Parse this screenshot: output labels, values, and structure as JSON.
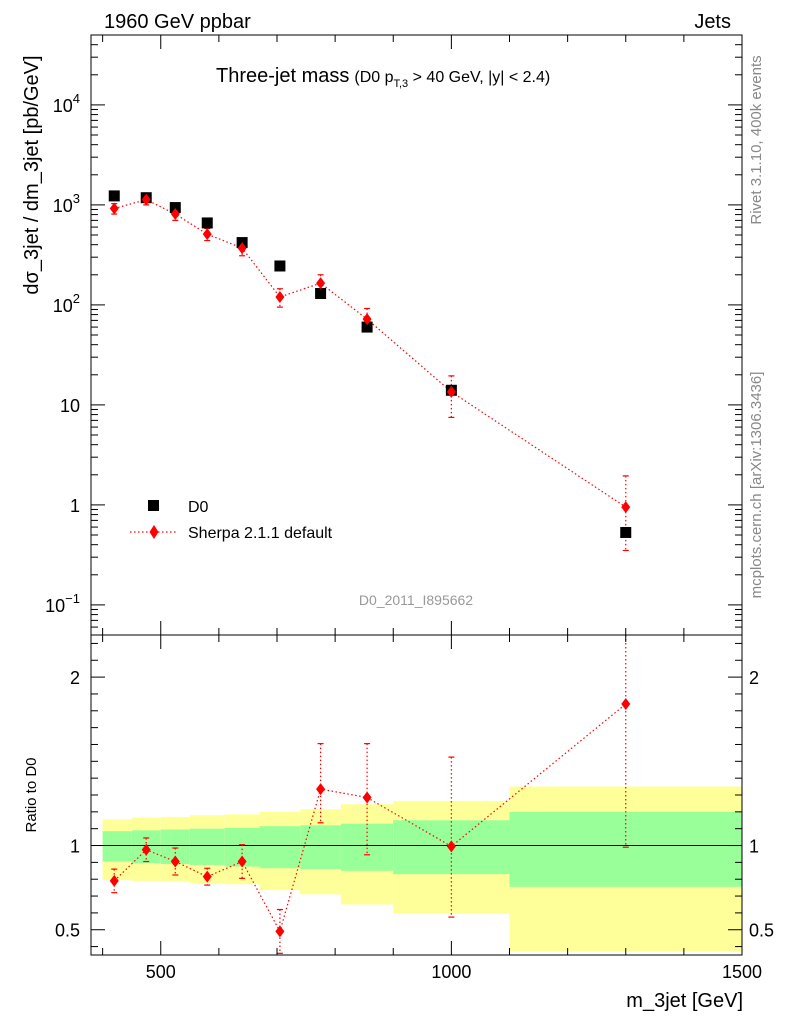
{
  "header": {
    "left": "1960 GeV ppbar",
    "right": "Jets"
  },
  "side_labels": {
    "rivet": "Rivet 3.1.10,  400k events",
    "mcplots": "mcplots.cern.ch [arXiv:1306.3436]"
  },
  "watermark": "D0_2011_I895662",
  "chart_data": [
    {
      "type": "scatter",
      "title": "Three-jet mass",
      "subtitle": "(D0 p_T,3 > 40 GeV, |y| < 2.4)",
      "subtitle_parts": {
        "pre": "(D0 p",
        "sub": "T,3",
        "post": " > 40 GeV, |y| < 2.4)"
      },
      "ylabel": "dσ_3jet / dm_3jet [pb/GeV]",
      "xlim": [
        380,
        1500
      ],
      "ylim": [
        0.05,
        50000
      ],
      "yscale": "log",
      "y_ticks": [
        {
          "value": 0.1,
          "base": "10",
          "exp": "−1"
        },
        {
          "value": 1,
          "text": "1"
        },
        {
          "value": 10,
          "text": "10"
        },
        {
          "value": 100,
          "base": "10",
          "exp": "2"
        },
        {
          "value": 1000,
          "base": "10",
          "exp": "3"
        },
        {
          "value": 10000,
          "base": "10",
          "exp": "4"
        }
      ],
      "legend": {
        "position": "bottom-left"
      },
      "series": [
        {
          "name": "D0",
          "color": "#000000",
          "marker": "square",
          "x": [
            420,
            475,
            525,
            580,
            640,
            705,
            775,
            855,
            1000,
            1300
          ],
          "y": [
            1230,
            1180,
            940,
            660,
            420,
            245,
            130,
            60,
            14,
            0.53
          ]
        },
        {
          "name": "Sherpa 2.1.1 default",
          "color": "#ff0000",
          "marker": "diamond",
          "line": "dotted",
          "x": [
            420,
            475,
            525,
            580,
            640,
            705,
            775,
            855,
            1000,
            1300
          ],
          "y": [
            920,
            1130,
            810,
            510,
            370,
            120,
            165,
            72,
            13.5,
            0.95
          ],
          "y_err_low": [
            110,
            130,
            110,
            70,
            60,
            25,
            30,
            15,
            6,
            0.6
          ],
          "y_err_high": [
            110,
            130,
            110,
            70,
            60,
            25,
            35,
            20,
            6,
            1.0
          ]
        }
      ]
    },
    {
      "type": "scatter",
      "ylabel": "Ratio to D0",
      "xlabel": "m_3jet [GeV]",
      "xlim": [
        380,
        1500
      ],
      "ylim": [
        0.35,
        2.25
      ],
      "x_ticks": [
        500,
        1000,
        1500
      ],
      "x_tick_labels": [
        "500",
        "1000",
        "1500"
      ],
      "y_ticks": [
        0.5,
        1,
        2
      ],
      "y_tick_labels": [
        "0.5",
        "1",
        "2"
      ],
      "reference_line": 1,
      "bands": [
        {
          "x0": 400,
          "x1": 450,
          "green": [
            0.905,
            1.085
          ],
          "yellow": [
            0.795,
            1.155
          ]
        },
        {
          "x0": 450,
          "x1": 500,
          "green": [
            0.895,
            1.09
          ],
          "yellow": [
            0.79,
            1.165
          ]
        },
        {
          "x0": 500,
          "x1": 550,
          "green": [
            0.89,
            1.095
          ],
          "yellow": [
            0.785,
            1.17
          ]
        },
        {
          "x0": 550,
          "x1": 610,
          "green": [
            0.885,
            1.1
          ],
          "yellow": [
            0.775,
            1.18
          ]
        },
        {
          "x0": 610,
          "x1": 670,
          "green": [
            0.875,
            1.105
          ],
          "yellow": [
            0.77,
            1.185
          ]
        },
        {
          "x0": 670,
          "x1": 740,
          "green": [
            0.865,
            1.115
          ],
          "yellow": [
            0.735,
            1.2
          ]
        },
        {
          "x0": 740,
          "x1": 810,
          "green": [
            0.86,
            1.12
          ],
          "yellow": [
            0.71,
            1.215
          ]
        },
        {
          "x0": 810,
          "x1": 900,
          "green": [
            0.85,
            1.13
          ],
          "yellow": [
            0.65,
            1.245
          ]
        },
        {
          "x0": 900,
          "x1": 1100,
          "green": [
            0.83,
            1.15
          ],
          "yellow": [
            0.595,
            1.265
          ]
        },
        {
          "x0": 1100,
          "x1": 1500,
          "green": [
            0.755,
            1.2
          ],
          "yellow": [
            0.37,
            1.35
          ]
        }
      ],
      "band_colors": {
        "green": "#99ff99",
        "yellow": "#ffff99"
      },
      "series": [
        {
          "name": "Sherpa 2.1.1 default",
          "color": "#ff0000",
          "marker": "diamond",
          "line": "dotted",
          "x": [
            420,
            475,
            525,
            580,
            640,
            705,
            775,
            855,
            1000,
            1300
          ],
          "y": [
            0.79,
            0.975,
            0.905,
            0.815,
            0.905,
            0.49,
            1.335,
            1.285,
            0.995,
            1.84
          ],
          "y_err_low": [
            0.07,
            0.07,
            0.08,
            0.05,
            0.1,
            0.13,
            0.2,
            0.34,
            0.42,
            0.85
          ],
          "y_err_high": [
            0.07,
            0.07,
            0.08,
            0.05,
            0.1,
            0.13,
            0.27,
            0.32,
            0.53,
            0.85
          ]
        }
      ]
    }
  ]
}
